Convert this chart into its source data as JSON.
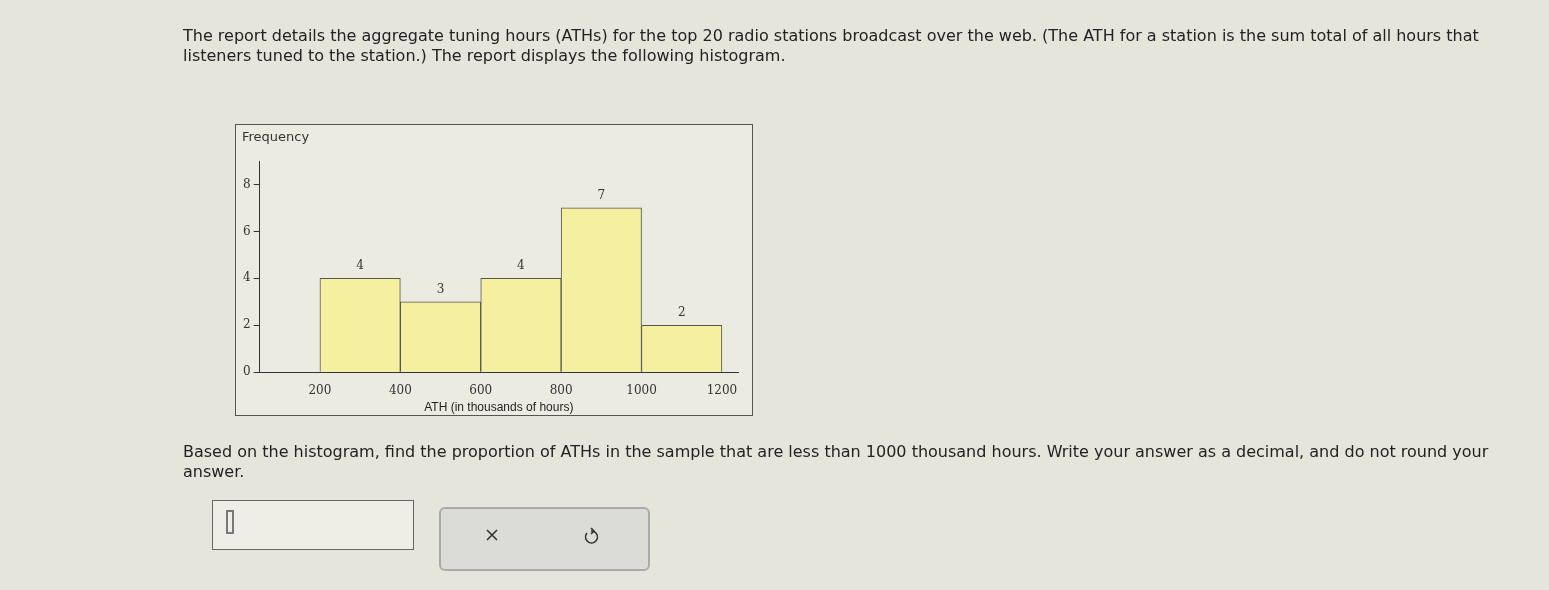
{
  "chart_data": {
    "type": "histogram",
    "annotations": [
      "The report details the aggregate tuning hours (ATHs) for the top 20 radio stations broadcast over the web. (The ATH for a station is the sum total of all hours that listeners tuned to the station.) The report displays the following histogram.",
      "Based on the histogram, find the proportion of ATHs in the sample that are less than 1000 thousand hours. Write your answer as a decimal, and do not round your answer."
    ],
    "xlabel": "ATH (in thousands of hours)",
    "ylabel": "Frequency",
    "bins": [
      200,
      400,
      600,
      800,
      1000,
      1200
    ],
    "values": [
      4,
      3,
      4,
      7,
      2
    ],
    "color": "#f5f0a0",
    "data_labels": true,
    "xlim": [
      50,
      1240
    ],
    "xticks": [
      200,
      400,
      600,
      800,
      1000,
      1200
    ],
    "ylim": [
      0,
      9
    ],
    "yticks": [
      0,
      2,
      4,
      6,
      8
    ],
    "grid": false,
    "legend": false
  }
}
